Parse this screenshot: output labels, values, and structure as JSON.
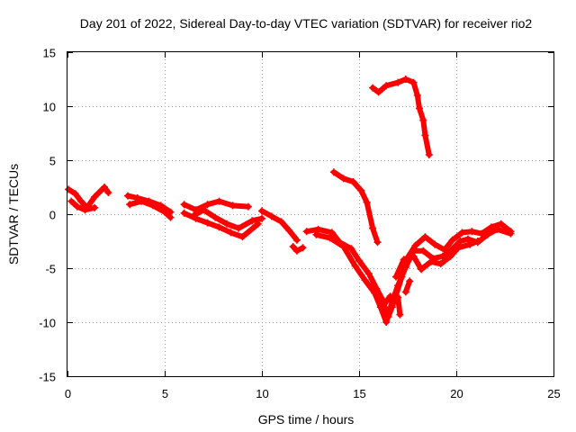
{
  "chart_data": {
    "type": "scatter",
    "title": "Day 201 of 2022, Sidereal Day-to-day VTEC variation (SDTVAR) for receiver rio2",
    "xlabel": "GPS time / hours",
    "ylabel": "SDTVAR / TECUs",
    "xlim": [
      0,
      25
    ],
    "ylim": [
      -15,
      15
    ],
    "xticks": [
      0,
      5,
      10,
      15,
      20,
      25
    ],
    "yticks": [
      -15,
      -10,
      -5,
      0,
      5,
      10,
      15
    ],
    "grid": true,
    "marker_color": "#ff0000",
    "series": [
      {
        "name": "SDTVAR",
        "segments": [
          [
            [
              0.05,
              2.3
            ],
            [
              0.4,
              1.9
            ],
            [
              0.7,
              1.2
            ],
            [
              1.0,
              0.6
            ],
            [
              1.4,
              1.6
            ],
            [
              1.9,
              2.5
            ],
            [
              2.1,
              2.0
            ]
          ],
          [
            [
              0.2,
              1.2
            ],
            [
              0.5,
              0.7
            ],
            [
              0.9,
              0.4
            ],
            [
              1.4,
              0.6
            ]
          ],
          [
            [
              3.1,
              1.7
            ],
            [
              3.6,
              1.5
            ],
            [
              4.2,
              1.2
            ],
            [
              4.8,
              0.8
            ],
            [
              5.3,
              0.2
            ]
          ],
          [
            [
              3.2,
              0.9
            ],
            [
              3.8,
              1.2
            ],
            [
              4.4,
              0.8
            ],
            [
              5.0,
              0.2
            ],
            [
              5.3,
              -0.3
            ]
          ],
          [
            [
              6.0,
              0.9
            ],
            [
              6.6,
              0.4
            ],
            [
              7.2,
              0.9
            ],
            [
              7.8,
              1.2
            ],
            [
              8.5,
              0.8
            ],
            [
              9.3,
              0.7
            ]
          ],
          [
            [
              6.0,
              0.1
            ],
            [
              6.6,
              -0.4
            ],
            [
              7.2,
              -0.8
            ],
            [
              7.8,
              -1.2
            ],
            [
              8.4,
              -1.7
            ],
            [
              9.0,
              -2.1
            ],
            [
              9.8,
              -0.9
            ]
          ],
          [
            [
              6.5,
              -0.1
            ],
            [
              7.0,
              0.4
            ],
            [
              7.6,
              -0.3
            ],
            [
              8.2,
              -0.9
            ],
            [
              8.8,
              -1.3
            ],
            [
              9.5,
              -0.6
            ],
            [
              10.0,
              -0.4
            ]
          ],
          [
            [
              10.0,
              0.3
            ],
            [
              10.5,
              -0.2
            ],
            [
              11.0,
              -0.7
            ],
            [
              11.4,
              -1.5
            ],
            [
              11.8,
              -2.4
            ]
          ],
          [
            [
              11.6,
              -3.0
            ],
            [
              11.8,
              -3.4
            ],
            [
              12.1,
              -3.1
            ]
          ],
          [
            [
              12.3,
              -1.6
            ],
            [
              12.9,
              -1.4
            ],
            [
              13.6,
              -1.7
            ],
            [
              14.0,
              -2.6
            ],
            [
              14.6,
              -3.2
            ],
            [
              15.0,
              -4.3
            ],
            [
              15.5,
              -5.5
            ],
            [
              15.9,
              -6.9
            ],
            [
              16.2,
              -7.9
            ],
            [
              16.5,
              -9.5
            ],
            [
              16.7,
              -8.6
            ],
            [
              16.9,
              -7.5
            ],
            [
              17.2,
              -5.8
            ],
            [
              17.5,
              -4.0
            ],
            [
              17.9,
              -2.9
            ],
            [
              18.4,
              -2.1
            ],
            [
              18.9,
              -2.8
            ],
            [
              19.4,
              -3.3
            ],
            [
              19.8,
              -2.4
            ],
            [
              20.3,
              -1.7
            ],
            [
              20.8,
              -1.6
            ],
            [
              21.3,
              -1.8
            ],
            [
              21.8,
              -1.2
            ],
            [
              22.3,
              -0.9
            ],
            [
              22.8,
              -1.6
            ]
          ],
          [
            [
              12.8,
              -1.9
            ],
            [
              13.5,
              -2.2
            ],
            [
              14.2,
              -3.0
            ],
            [
              14.8,
              -4.8
            ],
            [
              15.3,
              -6.1
            ],
            [
              15.8,
              -7.3
            ],
            [
              16.1,
              -8.6
            ],
            [
              16.4,
              -10.0
            ],
            [
              16.7,
              -8.1
            ],
            [
              17.0,
              -6.6
            ],
            [
              17.4,
              -4.9
            ],
            [
              17.8,
              -3.4
            ],
            [
              18.3,
              -3.4
            ],
            [
              18.8,
              -4.1
            ],
            [
              19.3,
              -3.9
            ],
            [
              19.7,
              -3.4
            ],
            [
              20.2,
              -2.5
            ],
            [
              20.6,
              -2.3
            ],
            [
              21.1,
              -2.6
            ],
            [
              21.6,
              -1.9
            ],
            [
              22.1,
              -1.4
            ],
            [
              22.8,
              -1.8
            ]
          ],
          [
            [
              16.3,
              -8.3
            ],
            [
              16.6,
              -7.6
            ],
            [
              17.0,
              -7.7
            ],
            [
              17.1,
              -9.3
            ]
          ],
          [
            [
              17.4,
              -7.2
            ],
            [
              17.6,
              -6.2
            ]
          ],
          [
            [
              16.9,
              -5.8
            ],
            [
              17.3,
              -4.2
            ],
            [
              17.8,
              -3.9
            ],
            [
              18.2,
              -5.1
            ],
            [
              18.7,
              -4.4
            ],
            [
              19.2,
              -4.6
            ],
            [
              19.7,
              -3.9
            ],
            [
              20.1,
              -3.1
            ],
            [
              20.7,
              -2.8
            ],
            [
              21.1,
              -2.5
            ]
          ],
          [
            [
              13.7,
              3.9
            ],
            [
              14.2,
              3.3
            ],
            [
              14.7,
              3.0
            ],
            [
              15.1,
              2.2
            ],
            [
              15.4,
              1.1
            ],
            [
              15.7,
              -1.3
            ],
            [
              15.95,
              -2.6
            ]
          ],
          [
            [
              15.7,
              11.7
            ],
            [
              16.0,
              11.3
            ],
            [
              16.4,
              11.9
            ],
            [
              17.0,
              12.2
            ],
            [
              17.4,
              12.5
            ],
            [
              17.8,
              12.2
            ],
            [
              18.0,
              11.0
            ],
            [
              18.1,
              9.8
            ],
            [
              18.3,
              8.7
            ],
            [
              18.4,
              7.3
            ],
            [
              18.6,
              5.5
            ]
          ]
        ]
      }
    ]
  }
}
